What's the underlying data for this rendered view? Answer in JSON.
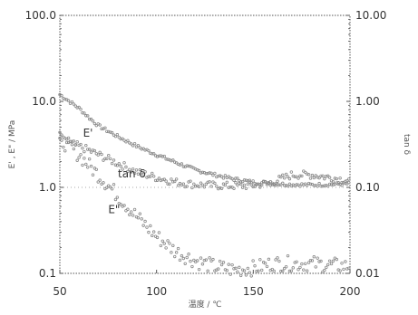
{
  "chart_data": {
    "type": "scatter",
    "title": "",
    "xlabel": "温度 / ℃",
    "ylabel_left": "E' , E\" / MPa",
    "ylabel_right": "tan δ",
    "xlim": [
      50,
      200
    ],
    "ylim_left": [
      0.1,
      100.0
    ],
    "ylim_right": [
      0.01,
      10.0
    ],
    "yscale_left": "log",
    "yscale_right": "log",
    "grid": false,
    "x_ticks": [
      "50",
      "100",
      "150",
      "200"
    ],
    "y_ticks_left": [
      "0.1",
      "1.0",
      "10.0",
      "100.0"
    ],
    "y_ticks_right": [
      "0.01",
      "0.10",
      "1.00",
      "10.00"
    ],
    "series": [
      {
        "name": "E'",
        "axis": "left",
        "x": [
          50,
          55,
          60,
          65,
          70,
          80,
          90,
          100,
          110,
          120,
          130,
          140,
          150,
          160,
          170,
          180,
          190,
          200
        ],
        "y": [
          12.0,
          10.0,
          8.3,
          6.5,
          5.2,
          3.9,
          3.0,
          2.4,
          1.95,
          1.6,
          1.4,
          1.25,
          1.15,
          1.1,
          1.08,
          1.07,
          1.08,
          1.1
        ]
      },
      {
        "name": "tan δ",
        "axis": "right",
        "x": [
          50,
          55,
          60,
          65,
          70,
          80,
          90,
          100,
          110,
          120,
          130,
          140,
          150,
          160,
          170,
          180,
          190,
          200
        ],
        "y": [
          0.36,
          0.33,
          0.3,
          0.27,
          0.24,
          0.19,
          0.15,
          0.13,
          0.115,
          0.108,
          0.105,
          0.104,
          0.105,
          0.115,
          0.14,
          0.14,
          0.13,
          0.12
        ]
      },
      {
        "name": "E\"",
        "axis": "left",
        "x": [
          50,
          55,
          60,
          65,
          70,
          80,
          90,
          100,
          110,
          120,
          130,
          140,
          150,
          160,
          170,
          180,
          190,
          200
        ],
        "y": [
          3.6,
          3.0,
          2.4,
          1.8,
          1.4,
          0.8,
          0.45,
          0.27,
          0.18,
          0.14,
          0.12,
          0.11,
          0.115,
          0.13,
          0.13,
          0.13,
          0.125,
          0.12
        ]
      }
    ],
    "colors": {
      "markers": "#888888",
      "frame": "#555555",
      "dotted_rule": "#aaaaaa"
    }
  }
}
